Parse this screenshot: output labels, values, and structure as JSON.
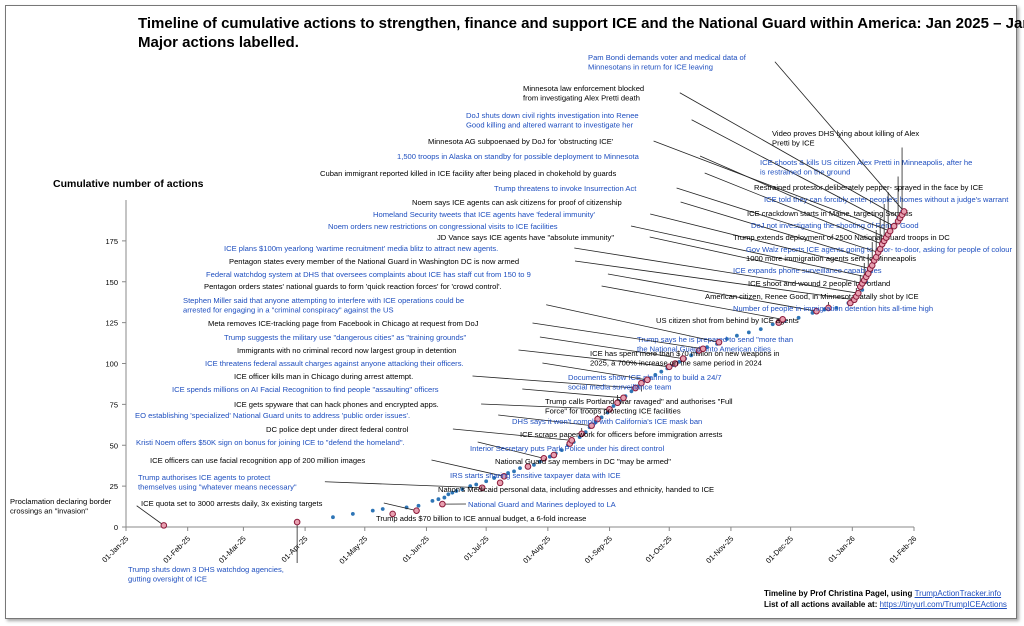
{
  "title_line1": "Timeline of cumulative actions to strengthen, finance and support ICE and the National Guard within America: Jan 2025 – Jan 2026",
  "title_line2": "Major actions labelled.",
  "credits": {
    "line1_text": "Timeline by Prof Christina Pagel, using ",
    "line1_link": "TrumpActionTracker.info",
    "line2_text": "List of all actions available at: ",
    "line2_link": "https://tinyurl.com/TrumpICEActions"
  },
  "chart_data": {
    "type": "scatter",
    "title": "Timeline of cumulative actions to strengthen, finance and support ICE and the National Guard within America: Jan 2025 – Jan 2026",
    "ylabel": "Cumulative number of actions",
    "xlabel": "",
    "ylim": [
      0,
      200
    ],
    "yticks": [
      0,
      25,
      50,
      75,
      100,
      125,
      150,
      175
    ],
    "x_range": [
      "2025-01-01",
      "2026-02-01"
    ],
    "xticks": [
      "01-Jan-25",
      "01-Feb-25",
      "01-Mar-25",
      "01-Apr-25",
      "01-May-25",
      "01-Jun-25",
      "01-Jul-25",
      "01-Aug-25",
      "01-Sep-25",
      "01-Oct-25",
      "01-Nov-25",
      "01-Dec-25",
      "01-Jan-26",
      "01-Feb-26"
    ],
    "grid": false,
    "colors": {
      "minor": "#2e75b6",
      "major_fill": "#e8a0b0",
      "major_edge": "#8b1a3a",
      "domestic_label": "#000000",
      "watchdog_label": "#1f4fbf",
      "leader": "#222222"
    },
    "minor_points": [
      {
        "x": "2025-04-15",
        "y": 6
      },
      {
        "x": "2025-04-25",
        "y": 8
      },
      {
        "x": "2025-05-05",
        "y": 10
      },
      {
        "x": "2025-05-10",
        "y": 11
      },
      {
        "x": "2025-05-22",
        "y": 12
      },
      {
        "x": "2025-05-28",
        "y": 13
      },
      {
        "x": "2025-06-04",
        "y": 16
      },
      {
        "x": "2025-06-07",
        "y": 17
      },
      {
        "x": "2025-06-10",
        "y": 18
      },
      {
        "x": "2025-06-12",
        "y": 20
      },
      {
        "x": "2025-06-14",
        "y": 21
      },
      {
        "x": "2025-06-16",
        "y": 22
      },
      {
        "x": "2025-06-19",
        "y": 23
      },
      {
        "x": "2025-06-23",
        "y": 25
      },
      {
        "x": "2025-06-26",
        "y": 26
      },
      {
        "x": "2025-07-01",
        "y": 28
      },
      {
        "x": "2025-07-05",
        "y": 30
      },
      {
        "x": "2025-07-12",
        "y": 33
      },
      {
        "x": "2025-07-15",
        "y": 34
      },
      {
        "x": "2025-07-18",
        "y": 36
      },
      {
        "x": "2025-07-25",
        "y": 38
      },
      {
        "x": "2025-07-28",
        "y": 40
      },
      {
        "x": "2025-08-02",
        "y": 43
      },
      {
        "x": "2025-08-05",
        "y": 45
      },
      {
        "x": "2025-08-08",
        "y": 47
      },
      {
        "x": "2025-08-11",
        "y": 50
      },
      {
        "x": "2025-08-14",
        "y": 52
      },
      {
        "x": "2025-08-17",
        "y": 55
      },
      {
        "x": "2025-08-20",
        "y": 58
      },
      {
        "x": "2025-08-22",
        "y": 61
      },
      {
        "x": "2025-08-25",
        "y": 64
      },
      {
        "x": "2025-08-28",
        "y": 67
      },
      {
        "x": "2025-08-31",
        "y": 70
      },
      {
        "x": "2025-09-03",
        "y": 74
      },
      {
        "x": "2025-09-06",
        "y": 77
      },
      {
        "x": "2025-09-09",
        "y": 80
      },
      {
        "x": "2025-09-12",
        "y": 83
      },
      {
        "x": "2025-09-15",
        "y": 86
      },
      {
        "x": "2025-09-18",
        "y": 89
      },
      {
        "x": "2025-09-21",
        "y": 91
      },
      {
        "x": "2025-09-24",
        "y": 93
      },
      {
        "x": "2025-09-27",
        "y": 95
      },
      {
        "x": "2025-09-30",
        "y": 97
      },
      {
        "x": "2025-10-03",
        "y": 99
      },
      {
        "x": "2025-10-06",
        "y": 101
      },
      {
        "x": "2025-10-09",
        "y": 103
      },
      {
        "x": "2025-10-12",
        "y": 105
      },
      {
        "x": "2025-10-15",
        "y": 107
      },
      {
        "x": "2025-10-20",
        "y": 110
      },
      {
        "x": "2025-10-25",
        "y": 112
      },
      {
        "x": "2025-10-30",
        "y": 115
      },
      {
        "x": "2025-11-04",
        "y": 117
      },
      {
        "x": "2025-11-10",
        "y": 119
      },
      {
        "x": "2025-11-16",
        "y": 121
      },
      {
        "x": "2025-11-22",
        "y": 124
      },
      {
        "x": "2025-11-28",
        "y": 126
      },
      {
        "x": "2025-12-05",
        "y": 128
      },
      {
        "x": "2025-12-12",
        "y": 131
      },
      {
        "x": "2025-12-18",
        "y": 133
      },
      {
        "x": "2025-12-24",
        "y": 134
      },
      {
        "x": "2025-12-30",
        "y": 137
      },
      {
        "x": "2026-01-03",
        "y": 140
      },
      {
        "x": "2026-01-06",
        "y": 145
      },
      {
        "x": "2026-01-08",
        "y": 150
      },
      {
        "x": "2026-01-10",
        "y": 156
      },
      {
        "x": "2026-01-12",
        "y": 162
      },
      {
        "x": "2026-01-14",
        "y": 167
      },
      {
        "x": "2026-01-16",
        "y": 172
      },
      {
        "x": "2026-01-18",
        "y": 177
      },
      {
        "x": "2026-01-20",
        "y": 181
      },
      {
        "x": "2026-01-22",
        "y": 185
      },
      {
        "x": "2026-01-24",
        "y": 189
      },
      {
        "x": "2026-01-26",
        "y": 193
      }
    ],
    "major_events": [
      {
        "x": "2025-01-20",
        "y": 1,
        "label": [
          "Proclamation declaring border",
          "crossings an \"invasion\""
        ],
        "color": "black"
      },
      {
        "x": "2025-03-28",
        "y": 3,
        "label": [
          "Trump shuts down 3 DHS watchdog agencies,",
          "gutting oversight of ICE"
        ],
        "color": "blue"
      },
      {
        "x": "2025-05-15",
        "y": 8,
        "label": [
          "Trump adds $70 billion to ICE annual budget, a 6-fold increase"
        ],
        "color": "black"
      },
      {
        "x": "2025-05-27",
        "y": 10,
        "label": [
          "ICE quota set to 3000 arrests daily, 3x existing targets"
        ],
        "color": "black"
      },
      {
        "x": "2025-06-09",
        "y": 14,
        "label": [
          "National Guard and Marines deployed to LA"
        ],
        "color": "blue"
      },
      {
        "x": "2025-06-29",
        "y": 24,
        "label": [
          "Trump authorises ICE agents to protect",
          "themselves using \"whatever means necessary\""
        ],
        "color": "blue"
      },
      {
        "x": "2025-07-08",
        "y": 27,
        "label": [
          "Nation's Medicaid personal data, including addresses and ethnicity, handed to ICE"
        ],
        "color": "black"
      },
      {
        "x": "2025-07-10",
        "y": 31,
        "label": [
          "ICE officers can use facial recognition app of 200 million images"
        ],
        "color": "black"
      },
      {
        "x": "2025-07-22",
        "y": 37,
        "label": [
          "IRS starts sharing sensitive taxpayer data with ICE"
        ],
        "color": "blue"
      },
      {
        "x": "2025-07-30",
        "y": 42,
        "label": [
          "Kristi Noem offers $50K sign on bonus for joining ICE to \"defend the homeland\"."
        ],
        "color": "blue"
      },
      {
        "x": "2025-08-04",
        "y": 44,
        "label": [
          "National Guard say members in DC \"may be armed\""
        ],
        "color": "black"
      },
      {
        "x": "2025-08-12",
        "y": 51,
        "label": [
          "Interior Secretary puts Park Police under his direct control"
        ],
        "color": "blue"
      },
      {
        "x": "2025-08-13",
        "y": 53,
        "label": [
          "DC police dept under direct federal control"
        ],
        "color": "black"
      },
      {
        "x": "2025-08-18",
        "y": 57,
        "label": [
          "ICE scraps paperwork for officers before immigration arrests"
        ],
        "color": "black"
      },
      {
        "x": "2025-08-23",
        "y": 62,
        "label": [
          "EO establishing 'specialized' National Guard units to address 'public order issues'."
        ],
        "color": "blue"
      },
      {
        "x": "2025-08-26",
        "y": 66,
        "label": [
          "DHS says it won't comply with California's ICE mask ban"
        ],
        "color": "blue"
      },
      {
        "x": "2025-09-01",
        "y": 72,
        "label": [
          "ICE gets spyware that can hack phones and encrypted apps."
        ],
        "color": "black"
      },
      {
        "x": "2025-09-05",
        "y": 76,
        "label": [
          "Trump calls Portland \"war ravaged\" and authorises \"Full",
          "Force\" for troops protecting ICE facilities"
        ],
        "color": "black"
      },
      {
        "x": "2025-09-08",
        "y": 79,
        "label": [
          "ICE spends millions on AI Facial Recognition to find people \"assaulting\" officers"
        ],
        "color": "blue"
      },
      {
        "x": "2025-09-14",
        "y": 85,
        "label": [
          "ICE officer kills man in Chicago during arrest attempt."
        ],
        "color": "black"
      },
      {
        "x": "2025-09-17",
        "y": 88,
        "label": [
          "Documents show ICE planning to build a 24/7",
          "social media surveillance team"
        ],
        "color": "blue"
      },
      {
        "x": "2025-09-20",
        "y": 90,
        "label": [
          "ICE threatens federal assault charges against anyone attacking their officers."
        ],
        "color": "blue"
      },
      {
        "x": "2025-10-01",
        "y": 98,
        "label": [
          "Immigrants with no criminal record now largest group in detention"
        ],
        "color": "black"
      },
      {
        "x": "2025-10-04",
        "y": 100,
        "label": [
          "ICE has spent more than $70 million on new weapons in",
          "2025, a 700% increase on the same period in 2024"
        ],
        "color": "black"
      },
      {
        "x": "2025-10-08",
        "y": 103,
        "label": [
          "Trump suggests  the military use \"dangerous cities\" as \"training grounds\""
        ],
        "color": "blue"
      },
      {
        "x": "2025-10-16",
        "y": 108,
        "label": [
          "Trump says he is prepared to send \"more than",
          "the National Guard\" into American cities"
        ],
        "color": "blue"
      },
      {
        "x": "2025-10-18",
        "y": 109,
        "label": [
          "Meta removes ICE-tracking page from Facebook in Chicago at request from DoJ"
        ],
        "color": "black"
      },
      {
        "x": "2025-10-26",
        "y": 113,
        "label": [
          "Stephen Miller said that anyone attempting to interfere with ICE operations could be",
          "arrested for engaging in a \"criminal conspiracy\" against the US"
        ],
        "color": "blue"
      },
      {
        "x": "2025-11-25",
        "y": 125,
        "label": [
          "US citizen shot from behind by ICE agents"
        ],
        "color": "black"
      },
      {
        "x": "2025-11-27",
        "y": 127,
        "label": [
          "Pentagon orders states' national guards to form 'quick reaction forces' for 'crowd control'."
        ],
        "color": "black"
      },
      {
        "x": "2025-12-14",
        "y": 132,
        "label": [
          "Federal watchdog system at DHS that oversees complaints about ICE has staff cut from 150 to 9"
        ],
        "color": "blue"
      },
      {
        "x": "2025-12-20",
        "y": 134,
        "label": [
          "Number of people in immigration detention hits all-time high"
        ],
        "color": "blue"
      },
      {
        "x": "2025-12-31",
        "y": 137,
        "label": [
          "American citizen, Renee Good, in Minnesota fatally shot by ICE"
        ],
        "color": "black"
      },
      {
        "x": "2026-01-02",
        "y": 139,
        "label": [
          "Pentagon states every member of the National Guard in Washington DC is now armed"
        ],
        "color": "black"
      },
      {
        "x": "2026-01-03",
        "y": 141,
        "label": [
          "ICE shoot and wound 2 people in Portland"
        ],
        "color": "black"
      },
      {
        "x": "2026-01-04",
        "y": 143,
        "label": [
          "ICE plans $100m yearlong 'wartime recruitment' media blitz to attract new agents."
        ],
        "color": "blue"
      },
      {
        "x": "2026-01-05",
        "y": 147,
        "label": [
          "ICE expands phone surveillance capabilities"
        ],
        "color": "blue"
      },
      {
        "x": "2026-01-06",
        "y": 149,
        "label": [
          "JD Vance says ICE agents have \"absolute immunity\""
        ],
        "color": "black"
      },
      {
        "x": "2026-01-07",
        "y": 151,
        "label": [
          "1000 more immigration agents sent to Minneapolis"
        ],
        "color": "black"
      },
      {
        "x": "2026-01-08",
        "y": 153,
        "label": [
          "Noem orders new restrictions on congressional visits to ICE facilities"
        ],
        "color": "blue"
      },
      {
        "x": "2026-01-09",
        "y": 155,
        "label": [
          "Gov Walz reports ICE agents going to door- to-door, asking for people of colour"
        ],
        "color": "blue"
      },
      {
        "x": "2026-01-10",
        "y": 158,
        "label": [
          "Homeland Security tweets that ICE agents have 'federal immunity'"
        ],
        "color": "blue"
      },
      {
        "x": "2026-01-11",
        "y": 160,
        "label": [
          "Trump extends deployment of 2500 National Guard troops in DC"
        ],
        "color": "black"
      },
      {
        "x": "2026-01-12",
        "y": 163,
        "label": [
          "Noem says ICE agents can ask citizens for proof of citizenship"
        ],
        "color": "black"
      },
      {
        "x": "2026-01-13",
        "y": 165,
        "label": [
          "DoJ not investigating the shooting of Renee Good"
        ],
        "color": "blue"
      },
      {
        "x": "2026-01-14",
        "y": 168,
        "label": [
          "Trump threatens to invoke Insurrection Act"
        ],
        "color": "blue"
      },
      {
        "x": "2026-01-15",
        "y": 170,
        "label": [
          "ICE crackdown starts in Maine, targeting Somalis"
        ],
        "color": "black"
      },
      {
        "x": "2026-01-16",
        "y": 173,
        "label": [
          "Cuban immigrant reported killed in ICE facility after being placed in chokehold by guards"
        ],
        "color": "black"
      },
      {
        "x": "2026-01-17",
        "y": 175,
        "label": [
          "ICE told they can forcibly enter people's homes without a judge's warrant"
        ],
        "color": "blue"
      },
      {
        "x": "2026-01-18",
        "y": 177,
        "label": [
          "1,500 troops in Alaska on standby for possible deployment to Minnesota"
        ],
        "color": "blue"
      },
      {
        "x": "2026-01-19",
        "y": 179,
        "label": [
          "Restrained protestor  deliberately pepper- sprayed in the face by ICE"
        ],
        "color": "black"
      },
      {
        "x": "2026-01-20",
        "y": 181,
        "label": [
          "Minnesota AG subpoenaed by DoJ for 'obstructing ICE'"
        ],
        "color": "black"
      },
      {
        "x": "2026-01-22",
        "y": 184,
        "label": [
          "DoJ shuts down civil rights investigation into Renee",
          "Good killing and altered warrant to investigate her"
        ],
        "color": "blue"
      },
      {
        "x": "2026-01-24",
        "y": 187,
        "label": [
          "ICE shoots & kills US citizen Alex Pretti in Minneapolis, after he",
          "is restrained on the ground"
        ],
        "color": "blue"
      },
      {
        "x": "2026-01-25",
        "y": 189,
        "label": [
          "Minnesota law enforcement blocked",
          "from investigating Alex Pretti death"
        ],
        "color": "black"
      },
      {
        "x": "2026-01-26",
        "y": 191,
        "label": [
          "Video proves DHS lying about killing of Alex",
          "Pretti by ICE"
        ],
        "color": "black"
      },
      {
        "x": "2026-01-27",
        "y": 193,
        "label": [
          "Pam Bondi demands voter and medical data of",
          "Minnesotans in return for ICE leaving"
        ],
        "color": "blue"
      }
    ]
  }
}
